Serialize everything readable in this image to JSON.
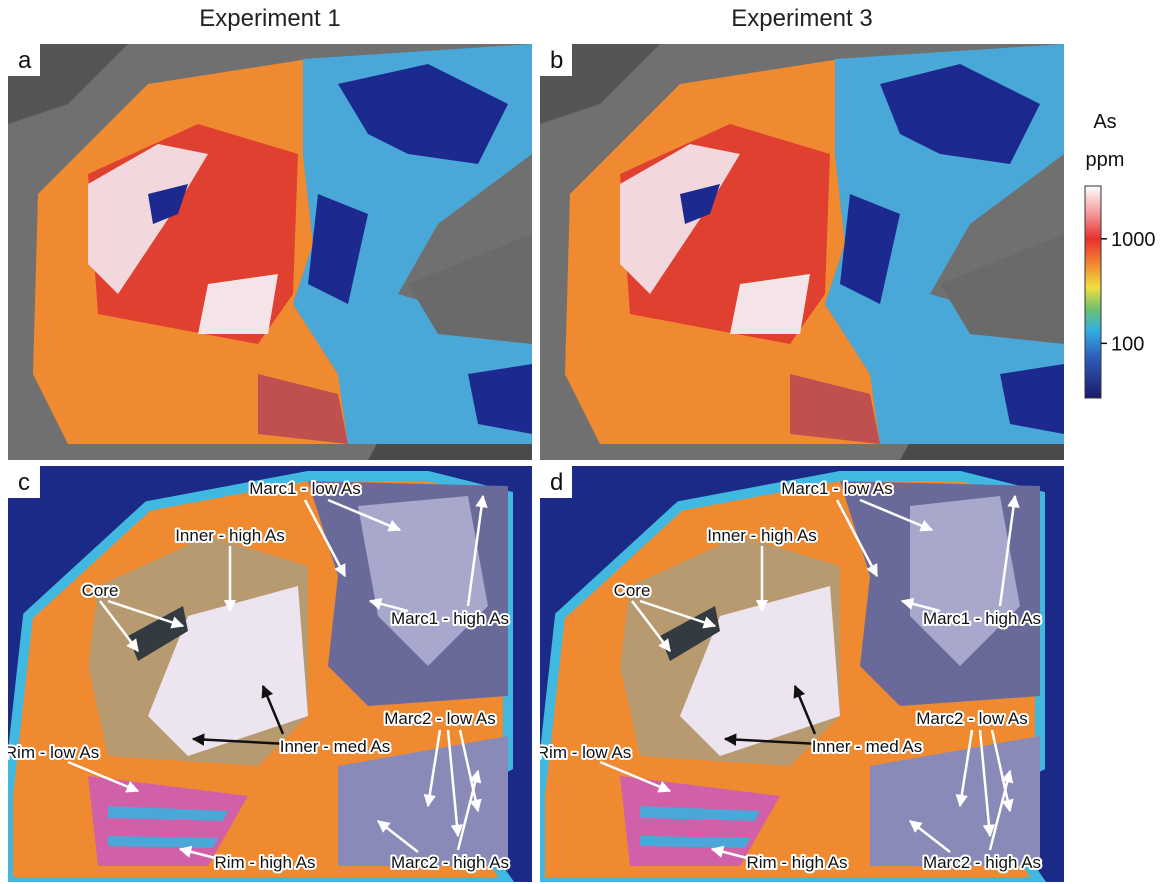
{
  "columns": [
    "Experiment 1",
    "Experiment 3"
  ],
  "panels": [
    {
      "letter": "a"
    },
    {
      "letter": "b"
    },
    {
      "letter": "c",
      "labels": [
        "Marc1 - low As",
        "Inner - high As",
        "Core",
        "Marc1 - high As",
        "Marc2 - low As",
        "Inner - med As",
        "Rim - low As",
        "Rim - high As",
        "Marc2 - high As"
      ]
    },
    {
      "letter": "d",
      "labels": [
        "Marc1 - low As",
        "Inner - high As",
        "Core",
        "Marc1 - high As",
        "Marc2 - low As",
        "Inner - med As",
        "Rim - low As",
        "Rim - high As",
        "Marc2 - high As"
      ]
    }
  ],
  "colorbar": {
    "title": [
      "As",
      "ppm"
    ],
    "scale": "log",
    "lim": [
      30,
      3200
    ],
    "ticks": [
      100,
      1000
    ]
  }
}
